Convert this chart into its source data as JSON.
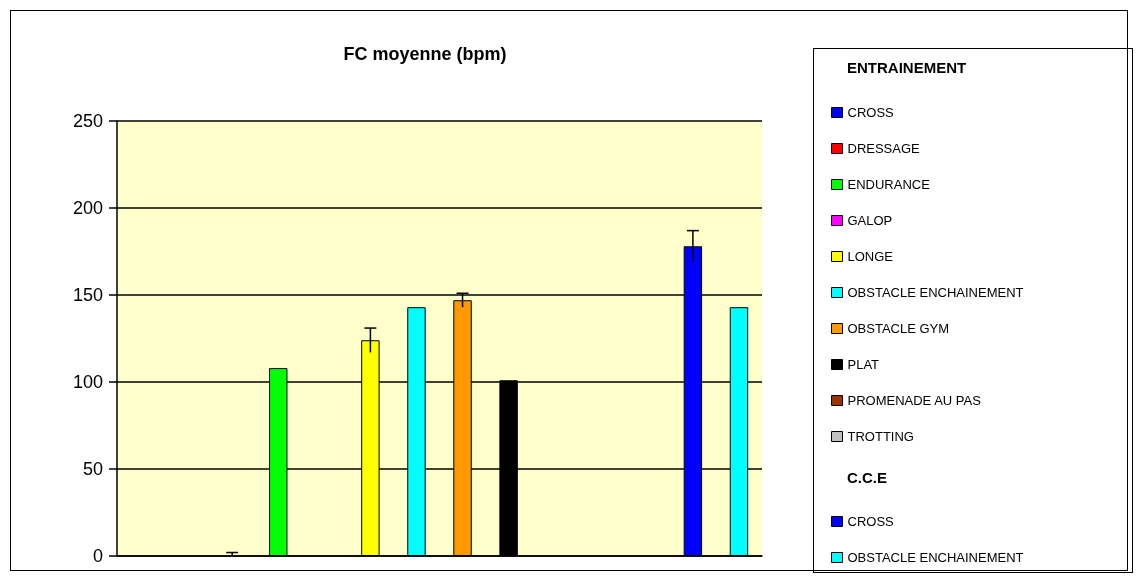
{
  "chart_data": {
    "type": "bar",
    "title": "FC moyenne (bpm)",
    "legend_title": "ENTRAINEMENT",
    "annotations": [
      "C.C.E"
    ],
    "categories": [
      null,
      null,
      null,
      null,
      null,
      null,
      null,
      null,
      null,
      null,
      null,
      null,
      null,
      null
    ],
    "ylim": [
      0,
      250
    ],
    "yticks": [
      0,
      50,
      100,
      150,
      200,
      250
    ],
    "grid": "y",
    "legend": "right",
    "tick_labels": "y",
    "series": [
      {
        "name": "CROSS",
        "color": "#0000ff",
        "values": [
          null,
          null,
          null,
          null,
          null,
          null,
          null,
          null,
          null,
          null,
          null,
          null,
          null,
          null
        ]
      },
      {
        "name": "DRESSAGE",
        "color": "#ff0000",
        "values": [
          null,
          null,
          0,
          null,
          null,
          null,
          null,
          null,
          null,
          null,
          null,
          null,
          null,
          null
        ],
        "errors": [
          null,
          null,
          [
            0,
            2
          ],
          null,
          null,
          null,
          null,
          null,
          null,
          null,
          null,
          null,
          null,
          null
        ]
      },
      {
        "name": "ENDURANCE",
        "color": "#00ff00",
        "values": [
          null,
          null,
          null,
          108,
          null,
          null,
          null,
          null,
          null,
          null,
          null,
          null,
          null,
          null
        ]
      },
      {
        "name": "GALOP",
        "color": "#ff00ff",
        "values": [
          null,
          null,
          null,
          null,
          null,
          null,
          null,
          null,
          null,
          null,
          null,
          null,
          null,
          null
        ]
      },
      {
        "name": "LONGE",
        "color": "#ffff00",
        "values": [
          null,
          null,
          null,
          null,
          null,
          124,
          null,
          null,
          null,
          null,
          null,
          null,
          null,
          null
        ],
        "errors": [
          null,
          null,
          null,
          null,
          null,
          7,
          null,
          null,
          null,
          null,
          null,
          null,
          null,
          null
        ]
      },
      {
        "name": "OBSTACLE ENCHAINEMENT",
        "color": "#00ffff",
        "values": [
          null,
          null,
          null,
          null,
          null,
          null,
          143,
          null,
          null,
          null,
          null,
          null,
          null,
          null
        ]
      },
      {
        "name": "OBSTACLE GYM",
        "color": "#ff9900",
        "values": [
          null,
          null,
          null,
          null,
          null,
          null,
          null,
          147,
          null,
          null,
          null,
          null,
          null,
          null
        ],
        "errors": [
          null,
          null,
          null,
          null,
          null,
          null,
          null,
          4,
          null,
          null,
          null,
          null,
          null,
          null
        ]
      },
      {
        "name": "PLAT",
        "color": "#000000",
        "values": [
          null,
          null,
          null,
          null,
          null,
          null,
          null,
          null,
          101,
          null,
          null,
          null,
          null,
          null
        ]
      },
      {
        "name": "PROMENADE AU PAS",
        "color": "#993300",
        "values": [
          null,
          null,
          null,
          null,
          null,
          null,
          null,
          null,
          null,
          null,
          null,
          null,
          null,
          null
        ]
      },
      {
        "name": "TROTTING",
        "color": "#c0c0c0",
        "values": [
          null,
          null,
          null,
          null,
          null,
          null,
          null,
          null,
          null,
          null,
          null,
          null,
          null,
          null
        ]
      },
      {
        "name": "CROSS",
        "color": "#0000ff",
        "values": [
          null,
          null,
          null,
          null,
          null,
          null,
          null,
          null,
          null,
          null,
          null,
          null,
          178,
          null
        ],
        "errors": [
          null,
          null,
          null,
          null,
          null,
          null,
          null,
          null,
          null,
          null,
          null,
          null,
          9,
          null
        ]
      },
      {
        "name": "OBSTACLE ENCHAINEMENT",
        "color": "#00ffff",
        "values": [
          null,
          null,
          null,
          null,
          null,
          null,
          null,
          null,
          null,
          null,
          null,
          null,
          null,
          143
        ]
      }
    ]
  }
}
